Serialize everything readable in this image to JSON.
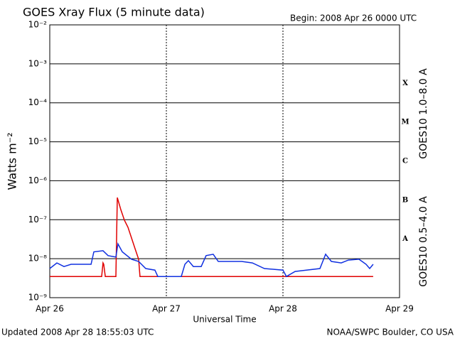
{
  "chart_data": {
    "type": "line",
    "title": "GOES Xray Flux (5 minute data)",
    "subtitle": "Begin:  2008 Apr 26 0000 UTC",
    "x_label": "Universal Time",
    "y_label": "Watts m⁻²",
    "footer_left": "Updated 2008 Apr 28 18:55:03 UTC",
    "footer_right": "NOAA/SWPC Boulder, CO USA",
    "log_y": true,
    "grid": true,
    "xlim": [
      0,
      3
    ],
    "xticks": [
      {
        "value": 0,
        "label": "Apr 26"
      },
      {
        "value": 1,
        "label": "Apr 27"
      },
      {
        "value": 2,
        "label": "Apr 28"
      },
      {
        "value": 3,
        "label": "Apr 29"
      }
    ],
    "ylim": [
      1e-09,
      0.01
    ],
    "yticks": [
      {
        "value": 1e-09,
        "label": "10⁻⁹"
      },
      {
        "value": 1e-08,
        "label": "10⁻⁸"
      },
      {
        "value": 1e-07,
        "label": "10⁻⁷"
      },
      {
        "value": 1e-06,
        "label": "10⁻⁶"
      },
      {
        "value": 1e-05,
        "label": "10⁻⁵"
      },
      {
        "value": 0.0001,
        "label": "10⁻⁴"
      },
      {
        "value": 0.001,
        "label": "10⁻³"
      },
      {
        "value": 0.01,
        "label": "10⁻²"
      }
    ],
    "flare_classes": [
      {
        "label": "A",
        "value": 1e-08
      },
      {
        "label": "B",
        "value": 1e-07
      },
      {
        "label": "C",
        "value": 1e-06
      },
      {
        "label": "M",
        "value": 1e-05
      },
      {
        "label": "X",
        "value": 0.0001
      }
    ],
    "series": [
      {
        "name": "GOES10 1.0–8.0 A",
        "color": "#e00000",
        "x": [
          0,
          0.445,
          0.457,
          0.463,
          0.476,
          0.567,
          0.579,
          0.61,
          0.64,
          0.671,
          0.701,
          0.732,
          0.762,
          0.774,
          2.774
        ],
        "values": [
          3.5e-09,
          3.5e-09,
          7.8e-09,
          7.2e-09,
          3.5e-09,
          3.5e-09,
          3.7e-07,
          1.8e-07,
          9.7e-08,
          6.4e-08,
          3.4e-08,
          1.8e-08,
          9.7e-09,
          3.5e-09,
          3.5e-09
        ]
      },
      {
        "name": "GOES10 0.5–4.0 A",
        "color": "#1030e0",
        "x": [
          0,
          0.061,
          0.122,
          0.183,
          0.354,
          0.378,
          0.457,
          0.5,
          0.567,
          0.585,
          0.622,
          0.701,
          0.762,
          0.823,
          0.902,
          0.927,
          1.128,
          1.159,
          1.189,
          1.232,
          1.299,
          1.341,
          1.402,
          1.445,
          1.646,
          1.738,
          1.841,
          2.0,
          2.03,
          2.104,
          2.317,
          2.366,
          2.415,
          2.5,
          2.561,
          2.652,
          2.713,
          2.744,
          2.774
        ],
        "values": [
          5.6e-09,
          7.8e-09,
          6.3e-09,
          7.2e-09,
          7.2e-09,
          1.5e-08,
          1.6e-08,
          1.2e-08,
          1.1e-08,
          2.4e-08,
          1.5e-08,
          9.7e-09,
          8.5e-09,
          5.6e-09,
          5.1e-09,
          3.5e-09,
          3.5e-09,
          7.2e-09,
          8.9e-09,
          6.3e-09,
          6.3e-09,
          1.2e-08,
          1.3e-08,
          8.5e-09,
          8.5e-09,
          7.8e-09,
          5.6e-09,
          5.1e-09,
          3.5e-09,
          4.7e-09,
          5.6e-09,
          1.3e-08,
          8.5e-09,
          7.8e-09,
          9.2e-09,
          9.7e-09,
          7.2e-09,
          5.6e-09,
          7.2e-09
        ]
      }
    ]
  }
}
